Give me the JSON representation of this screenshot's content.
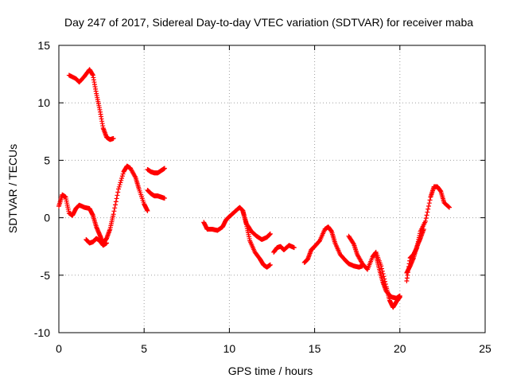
{
  "chart_data": {
    "type": "scatter",
    "title": "Day 247 of 2017, Sidereal Day-to-day VTEC variation (SDTVAR) for receiver maba",
    "xlabel": "GPS time / hours",
    "ylabel": "SDTVAR / TECUs",
    "xlim": [
      0,
      25
    ],
    "ylim": [
      -10,
      15
    ],
    "x_ticks": [
      "0",
      "5",
      "10",
      "15",
      "20",
      "25"
    ],
    "y_ticks": [
      "-10",
      "-5",
      "0",
      "5",
      "10",
      "15"
    ],
    "grid": true,
    "marker": "+",
    "color": "#ff0000",
    "series": [
      {
        "x": [
          0.6,
          1.0,
          1.2,
          1.5,
          1.8,
          2.0,
          2.2,
          2.4,
          2.6,
          2.8,
          3.0,
          3.2
        ],
        "y": [
          12.4,
          12.1,
          11.8,
          12.3,
          12.9,
          12.4,
          10.8,
          9.4,
          7.8,
          7.0,
          6.8,
          6.9
        ]
      },
      {
        "x": [
          0.0,
          0.2,
          0.4,
          0.6,
          0.8,
          1.0,
          1.2,
          1.5,
          1.8,
          2.0,
          2.2,
          2.4,
          2.6,
          2.8,
          3.0,
          3.2,
          3.5,
          3.8,
          4.0,
          4.2,
          4.5,
          4.7,
          5.0,
          5.2
        ],
        "y": [
          1.0,
          2.0,
          1.8,
          0.4,
          0.2,
          0.8,
          1.1,
          0.9,
          0.8,
          0.2,
          -0.8,
          -1.5,
          -2.2,
          -1.8,
          -1.0,
          0.3,
          2.5,
          4.0,
          4.5,
          4.3,
          3.5,
          2.5,
          1.2,
          0.6
        ]
      },
      {
        "x": [
          1.6,
          1.8,
          2.0,
          2.2,
          2.4,
          2.6,
          2.8
        ],
        "y": [
          -1.9,
          -2.2,
          -2.1,
          -1.8,
          -2.0,
          -2.4,
          -2.2
        ]
      },
      {
        "x": [
          5.2,
          5.4,
          5.6,
          5.8,
          6.0,
          6.2
        ],
        "y": [
          4.2,
          4.0,
          3.9,
          3.9,
          4.1,
          4.3
        ]
      },
      {
        "x": [
          5.2,
          5.4,
          5.6,
          5.8,
          6.0,
          6.2
        ],
        "y": [
          2.4,
          2.1,
          1.9,
          1.9,
          1.8,
          1.7
        ]
      },
      {
        "x": [
          8.5,
          8.7,
          9.0,
          9.3,
          9.6,
          9.8,
          10.0,
          10.3,
          10.6,
          10.8,
          11.0,
          11.2,
          11.5,
          11.8,
          12.0,
          12.2,
          12.4
        ],
        "y": [
          -0.4,
          -1.0,
          -1.0,
          -1.1,
          -0.8,
          -0.2,
          0.1,
          0.5,
          0.9,
          0.6,
          -0.6,
          -2.0,
          -3.0,
          -3.6,
          -4.1,
          -4.3,
          -4.1
        ]
      },
      {
        "x": [
          10.8,
          11.0,
          11.3,
          11.6,
          11.9,
          12.2,
          12.4
        ],
        "y": [
          0.5,
          -0.5,
          -1.2,
          -1.6,
          -1.9,
          -1.7,
          -1.4
        ]
      },
      {
        "x": [
          12.6,
          12.8,
          13.0,
          13.2,
          13.5,
          13.8
        ],
        "y": [
          -3.0,
          -2.6,
          -2.5,
          -2.8,
          -2.4,
          -2.6
        ]
      },
      {
        "x": [
          14.4,
          14.6,
          14.8,
          15.0,
          15.3,
          15.6,
          15.8,
          16.0,
          16.2,
          16.5,
          16.8,
          17.0,
          17.3,
          17.6,
          17.8
        ],
        "y": [
          -3.9,
          -3.6,
          -2.8,
          -2.5,
          -2.0,
          -1.0,
          -0.8,
          -1.2,
          -2.2,
          -3.2,
          -3.7,
          -4.0,
          -4.2,
          -4.3,
          -4.2
        ]
      },
      {
        "x": [
          17.0,
          17.3,
          17.5,
          17.8,
          18.1,
          18.4,
          18.6,
          18.9,
          19.2,
          19.4,
          19.6,
          19.8,
          20.0
        ],
        "y": [
          -1.6,
          -2.3,
          -3.2,
          -4.0,
          -4.5,
          -3.4,
          -3.0,
          -4.2,
          -6.0,
          -7.2,
          -7.8,
          -7.3,
          -6.9
        ]
      },
      {
        "x": [
          18.6,
          18.8,
          19.0,
          19.2,
          19.5,
          19.8,
          20.0
        ],
        "y": [
          -3.3,
          -4.5,
          -5.6,
          -6.4,
          -6.9,
          -7.0,
          -6.8
        ]
      },
      {
        "x": [
          20.4,
          20.6,
          20.8,
          21.0,
          21.2,
          21.5,
          21.8,
          22.0,
          22.2,
          22.4,
          22.6,
          22.9
        ],
        "y": [
          -5.5,
          -3.5,
          -3.2,
          -2.6,
          -1.2,
          -0.3,
          1.8,
          2.7,
          2.7,
          2.3,
          1.3,
          0.9
        ]
      },
      {
        "x": [
          20.4,
          20.6,
          20.8,
          21.0,
          21.2,
          21.4
        ],
        "y": [
          -4.8,
          -4.2,
          -3.5,
          -2.5,
          -1.8,
          -1.0
        ]
      }
    ]
  }
}
